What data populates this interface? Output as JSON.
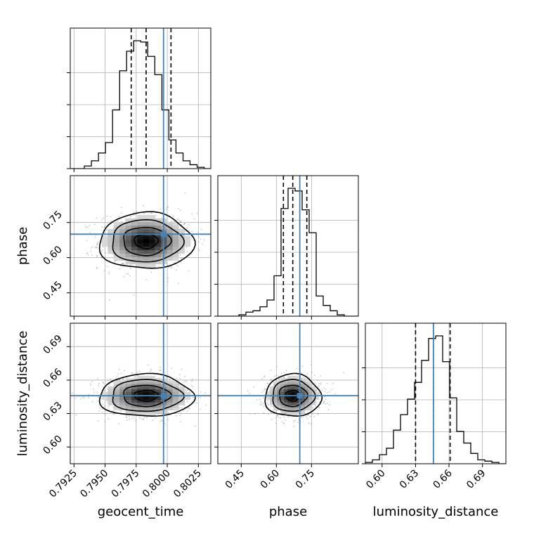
{
  "chart_data": {
    "type": "corner",
    "parameters": [
      "geocent_time",
      "phase",
      "luminosity_distance"
    ],
    "axis_labels": {
      "geocent_time": "geocent_time",
      "phase": "phase",
      "luminosity_distance": "luminosity_distance"
    },
    "ranges": {
      "geocent_time": [
        0.7922,
        0.8035
      ],
      "phase": [
        0.35,
        0.95
      ],
      "luminosity_distance": [
        0.585,
        0.711
      ]
    },
    "ticks": {
      "geocent_time": [
        0.7925,
        0.795,
        0.7975,
        0.8,
        0.8025
      ],
      "phase": [
        0.45,
        0.6,
        0.75
      ],
      "luminosity_distance": [
        0.6,
        0.63,
        0.66,
        0.69
      ]
    },
    "tick_labels": {
      "geocent_time": [
        "0.7925",
        "0.7950",
        "0.7975",
        "0.8000",
        "0.8025"
      ],
      "phase": [
        "0.45",
        "0.60",
        "0.75"
      ],
      "luminosity_distance": [
        "0.60",
        "0.63",
        "0.66",
        "0.69"
      ]
    },
    "truths": {
      "geocent_time": 0.7997,
      "phase": 0.7,
      "luminosity_distance": 0.646
    },
    "quantiles": {
      "geocent_time": [
        0.7971,
        0.7983,
        0.8003
      ],
      "phase": [
        0.63,
        0.67,
        0.73
      ],
      "luminosity_distance": [
        0.63,
        0.646,
        0.661
      ]
    },
    "histograms": {
      "geocent_time": {
        "edges": [
          0.7922,
          0.79277,
          0.79333,
          0.7939,
          0.79447,
          0.79503,
          0.7956,
          0.79617,
          0.79673,
          0.7973,
          0.79787,
          0.79843,
          0.799,
          0.79957,
          0.80013,
          0.8007,
          0.80127,
          0.80183,
          0.8024,
          0.80297,
          0.8035
        ],
        "counts": [
          0,
          0,
          2,
          6,
          12,
          20,
          45,
          75,
          90,
          98,
          97,
          86,
          72,
          45,
          22,
          12,
          6,
          3,
          1,
          0
        ]
      },
      "phase": {
        "edges": [
          0.35,
          0.38,
          0.41,
          0.44,
          0.47,
          0.5,
          0.53,
          0.56,
          0.59,
          0.62,
          0.65,
          0.68,
          0.71,
          0.74,
          0.77,
          0.8,
          0.83,
          0.86,
          0.89,
          0.92,
          0.95
        ],
        "counts": [
          0,
          0,
          0,
          1,
          3,
          4,
          7,
          12,
          30,
          80,
          95,
          93,
          79,
          62,
          15,
          8,
          4,
          1,
          0,
          0
        ]
      },
      "luminosity_distance": {
        "edges": [
          0.585,
          0.5913,
          0.5976,
          0.6039,
          0.6102,
          0.6165,
          0.6228,
          0.6291,
          0.6354,
          0.6417,
          0.648,
          0.6543,
          0.6606,
          0.6669,
          0.6732,
          0.6795,
          0.6858,
          0.6921,
          0.6984,
          0.7047,
          0.711
        ],
        "counts": [
          1,
          3,
          7,
          12,
          26,
          38,
          50,
          63,
          80,
          97,
          99,
          79,
          51,
          25,
          16,
          8,
          3,
          2,
          1,
          0
        ]
      }
    },
    "joint_2d": [
      {
        "x": "geocent_time",
        "y": "phase",
        "center": [
          0.7983,
          0.67
        ],
        "sigma": [
          0.0019,
          0.06
        ],
        "rho": 0.0
      },
      {
        "x": "geocent_time",
        "y": "luminosity_distance",
        "center": [
          0.7983,
          0.646
        ],
        "sigma": [
          0.0019,
          0.0095
        ],
        "rho": 0.0
      },
      {
        "x": "phase",
        "y": "luminosity_distance",
        "center": [
          0.67,
          0.646
        ],
        "sigma": [
          0.06,
          0.0095
        ],
        "rho": 0.0
      }
    ],
    "contour_levels_sigma": [
      0.5,
      1.0,
      1.5,
      2.0
    ],
    "grid": true,
    "colors": {
      "truth": "#4682b4",
      "hist": "#000000",
      "quantile": "#000000",
      "grid": "#b0b0b0",
      "scatter": "#808080"
    }
  }
}
